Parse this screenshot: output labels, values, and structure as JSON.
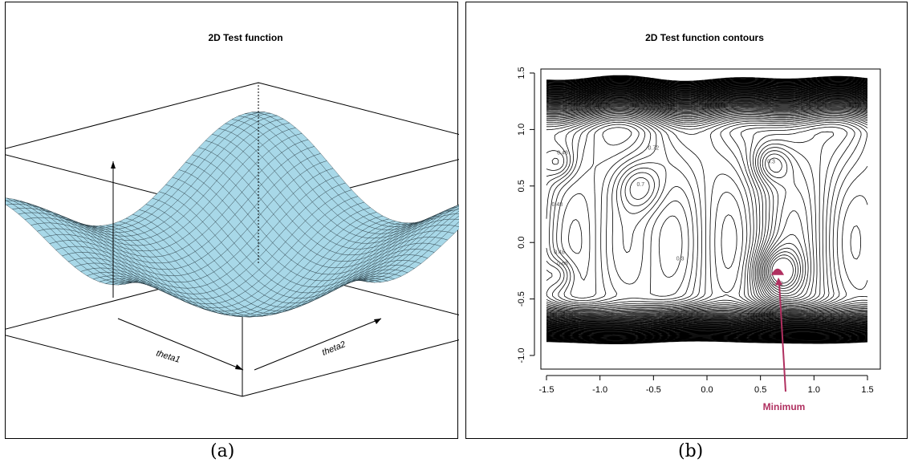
{
  "chart_data": [
    {
      "type": "surface",
      "title": "2D Test function",
      "xlabel": "theta1",
      "ylabel": "theta2",
      "surface_color": "#a8d8e8"
    },
    {
      "type": "contour",
      "title": "2D Test function contours",
      "xlim": [
        -1.5,
        1.5
      ],
      "ylim": [
        -1.0,
        1.5
      ],
      "x_ticks": [
        "-1.5",
        "-1.0",
        "-0.5",
        "0.0",
        "0.5",
        "1.0",
        "1.5"
      ],
      "y_ticks": [
        "-1.0",
        "-0.5",
        "0.0",
        "0.5",
        "1.0",
        "1.5"
      ],
      "contour_labels": [
        {
          "text": "0.48",
          "x": -1.35,
          "y": 0.78
        },
        {
          "text": "0.72",
          "x": -0.5,
          "y": 0.82
        },
        {
          "text": "0.3",
          "x": 0.6,
          "y": 0.7
        },
        {
          "text": "0.7",
          "x": -0.62,
          "y": 0.5
        },
        {
          "text": "0.48",
          "x": -1.4,
          "y": 0.32
        },
        {
          "text": "0.48",
          "x": -1.38,
          "y": -0.1
        },
        {
          "text": "0.68",
          "x": -1.35,
          "y": -0.2
        },
        {
          "text": "0.3",
          "x": -0.25,
          "y": -0.16
        },
        {
          "text": "0.52",
          "x": 0.66,
          "y": -0.38
        }
      ],
      "minimum": {
        "label": "Minimum",
        "x": 0.66,
        "y": -0.26,
        "color": "#b03060"
      }
    }
  ],
  "captions": [
    "(a)",
    "(b)"
  ]
}
